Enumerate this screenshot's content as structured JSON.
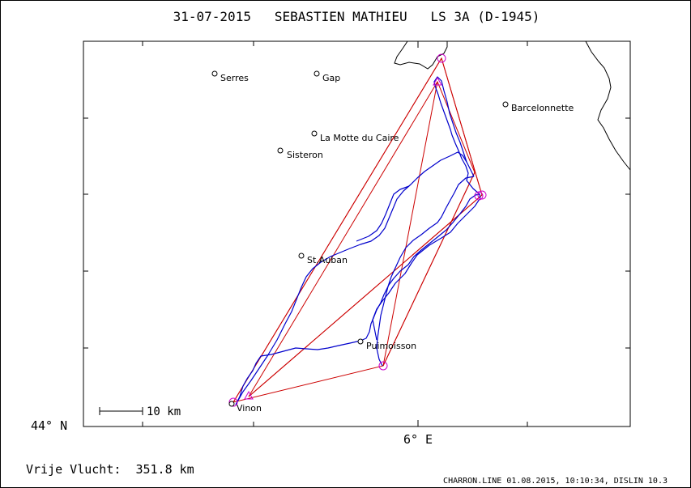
{
  "title": "31-07-2015   SEBASTIEN MATHIEU   LS 3A (D-1945)",
  "axis": {
    "lat_label": "44° N",
    "lon_label": "6° E"
  },
  "scale_bar": {
    "label": "10 km"
  },
  "footer": {
    "distance": "Vrije Vlucht:  351.8 km",
    "credit": "CHARRON.LINE 01.08.2015, 10:10:34, DISLIN 10.3"
  },
  "towns": [
    {
      "name": "Serres"
    },
    {
      "name": "Gap"
    },
    {
      "name": "Barcelonnette"
    },
    {
      "name": "La Motte du Caire"
    },
    {
      "name": "Sisteron"
    },
    {
      "name": "St.Auban"
    },
    {
      "name": "Puimoisson"
    },
    {
      "name": "Vinon"
    }
  ],
  "colors": {
    "track": "#0000cc",
    "task": "#cc0000",
    "turnpoint": "#cc00cc",
    "frame": "#000000"
  }
}
